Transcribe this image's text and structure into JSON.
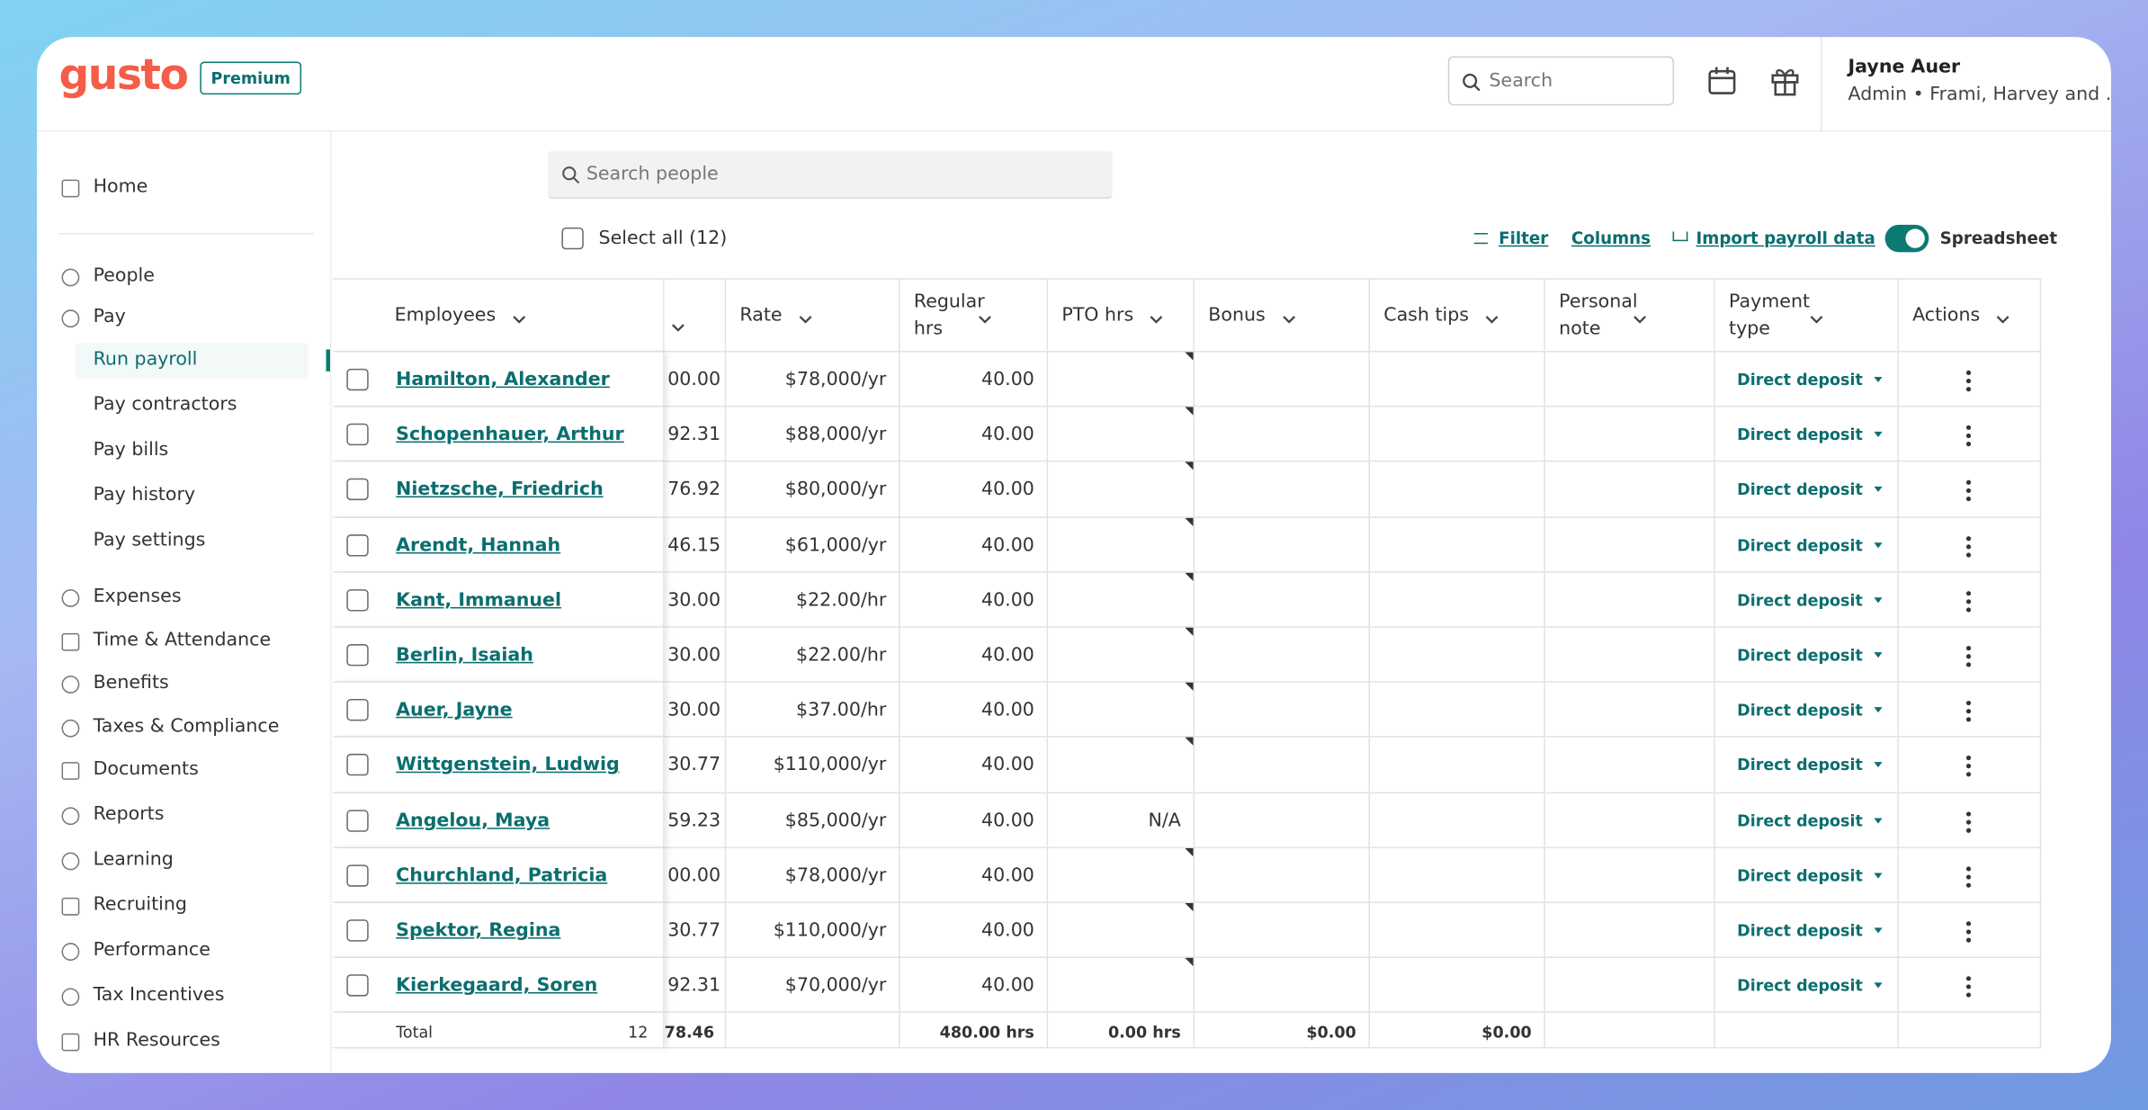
{
  "header": {
    "logo": "gusto",
    "plan": "Premium",
    "search": "Search",
    "user_name": "Jayne Auer",
    "user_role": "Admin • Frami, Harvey and ..."
  },
  "sidebar": {
    "items": [
      {
        "label": "Home"
      },
      {
        "label": "People"
      },
      {
        "label": "Pay"
      },
      {
        "label": "Run payroll",
        "sub": true,
        "active": true
      },
      {
        "label": "Pay contractors",
        "sub": true
      },
      {
        "label": "Pay bills",
        "sub": true
      },
      {
        "label": "Pay history",
        "sub": true
      },
      {
        "label": "Pay settings",
        "sub": true
      },
      {
        "label": "Expenses"
      },
      {
        "label": "Time & Attendance"
      },
      {
        "label": "Benefits"
      },
      {
        "label": "Taxes & Compliance"
      },
      {
        "label": "Documents"
      },
      {
        "label": "Reports"
      },
      {
        "label": "Learning"
      },
      {
        "label": "Recruiting"
      },
      {
        "label": "Performance"
      },
      {
        "label": "Tax Incentives"
      },
      {
        "label": "HR Resources"
      }
    ]
  },
  "toolbar": {
    "search_placeholder": "Search people",
    "select_all": "Select all (12)",
    "filter": "Filter",
    "columns": "Columns",
    "import": "Import payroll data",
    "spreadsheet": "Spreadsheet"
  },
  "table": {
    "columns": [
      "Employees",
      "Rate",
      "Regular hrs",
      "PTO hrs",
      "Bonus",
      "Cash tips",
      "Personal note",
      "Payment type",
      "Actions"
    ],
    "rows": [
      {
        "name": "Hamilton, Alexander",
        "amount": "00.00",
        "rate": "$78,000/yr",
        "regular_hrs": "40.00",
        "payment": "Direct deposit"
      },
      {
        "name": "Schopenhauer, Arthur",
        "amount": "92.31",
        "rate": "$88,000/yr",
        "regular_hrs": "40.00",
        "payment": "Direct deposit"
      },
      {
        "name": "Nietzsche, Friedrich",
        "amount": "76.92",
        "rate": "$80,000/yr",
        "regular_hrs": "40.00",
        "payment": "Direct deposit"
      },
      {
        "name": "Arendt, Hannah",
        "amount": "46.15",
        "rate": "$61,000/yr",
        "regular_hrs": "40.00",
        "payment": "Direct deposit"
      },
      {
        "name": "Kant, Immanuel",
        "amount": "30.00",
        "rate": "$22.00/hr",
        "regular_hrs": "40.00",
        "payment": "Direct deposit"
      },
      {
        "name": "Berlin, Isaiah",
        "amount": "30.00",
        "rate": "$22.00/hr",
        "regular_hrs": "40.00",
        "payment": "Direct deposit"
      },
      {
        "name": "Auer, Jayne",
        "amount": "30.00",
        "rate": "$37.00/hr",
        "regular_hrs": "40.00",
        "payment": "Direct deposit"
      },
      {
        "name": "Wittgenstein, Ludwig",
        "amount": "30.77",
        "rate": "$110,000/yr",
        "regular_hrs": "40.00",
        "payment": "Direct deposit"
      },
      {
        "name": "Angelou, Maya",
        "amount": "59.23",
        "rate": "$85,000/yr",
        "regular_hrs": "40.00",
        "pto_hrs": "N/A",
        "payment": "Direct deposit"
      },
      {
        "name": "Churchland, Patricia",
        "amount": "00.00",
        "rate": "$78,000/yr",
        "regular_hrs": "40.00",
        "payment": "Direct deposit"
      },
      {
        "name": "Spektor, Regina",
        "amount": "30.77",
        "rate": "$110,000/yr",
        "regular_hrs": "40.00",
        "payment": "Direct deposit"
      },
      {
        "name": "Kierkegaard, Soren",
        "amount": "92.31",
        "rate": "$70,000/yr",
        "regular_hrs": "40.00",
        "payment": "Direct deposit"
      }
    ],
    "total": {
      "label": "Total",
      "count": 12,
      "amount": "78.46",
      "regular_hrs": "480.00 hrs",
      "pto_hrs": "0.00 hrs",
      "bonus": "$0.00",
      "cash_tips": "$0.00"
    }
  }
}
